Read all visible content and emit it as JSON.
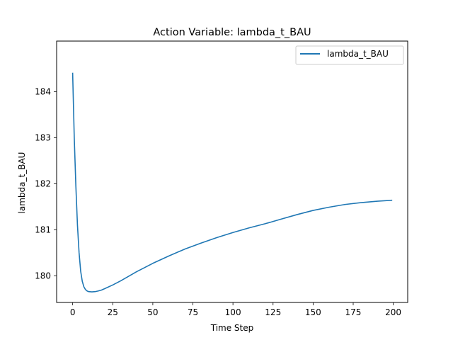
{
  "chart_data": {
    "type": "line",
    "title": "Action Variable: lambda_t_BAU",
    "xlabel": "Time Step",
    "ylabel": "lambda_t_BAU",
    "xlim": [
      -10,
      209
    ],
    "ylim": [
      179.42,
      185.1
    ],
    "xticks": [
      0,
      25,
      50,
      75,
      100,
      125,
      150,
      175,
      200
    ],
    "yticks": [
      180,
      181,
      182,
      183,
      184
    ],
    "grid": false,
    "legend": "top-right",
    "series": [
      {
        "name": "lambda_t_BAU",
        "color": "#1f77b4",
        "x": [
          0,
          1,
          2,
          3,
          4,
          5,
          6,
          7,
          8,
          9,
          10,
          12,
          14,
          16,
          18,
          20,
          25,
          30,
          40,
          50,
          60,
          70,
          80,
          90,
          100,
          110,
          120,
          130,
          140,
          150,
          160,
          170,
          180,
          190,
          199
        ],
        "y": [
          184.4,
          183.0,
          181.95,
          181.1,
          180.5,
          180.1,
          179.88,
          179.76,
          179.7,
          179.67,
          179.655,
          179.65,
          179.655,
          179.67,
          179.69,
          179.72,
          179.8,
          179.89,
          180.09,
          180.27,
          180.43,
          180.58,
          180.71,
          180.83,
          180.94,
          181.04,
          181.13,
          181.23,
          181.33,
          181.42,
          181.49,
          181.55,
          181.59,
          181.62,
          181.64
        ]
      }
    ]
  }
}
